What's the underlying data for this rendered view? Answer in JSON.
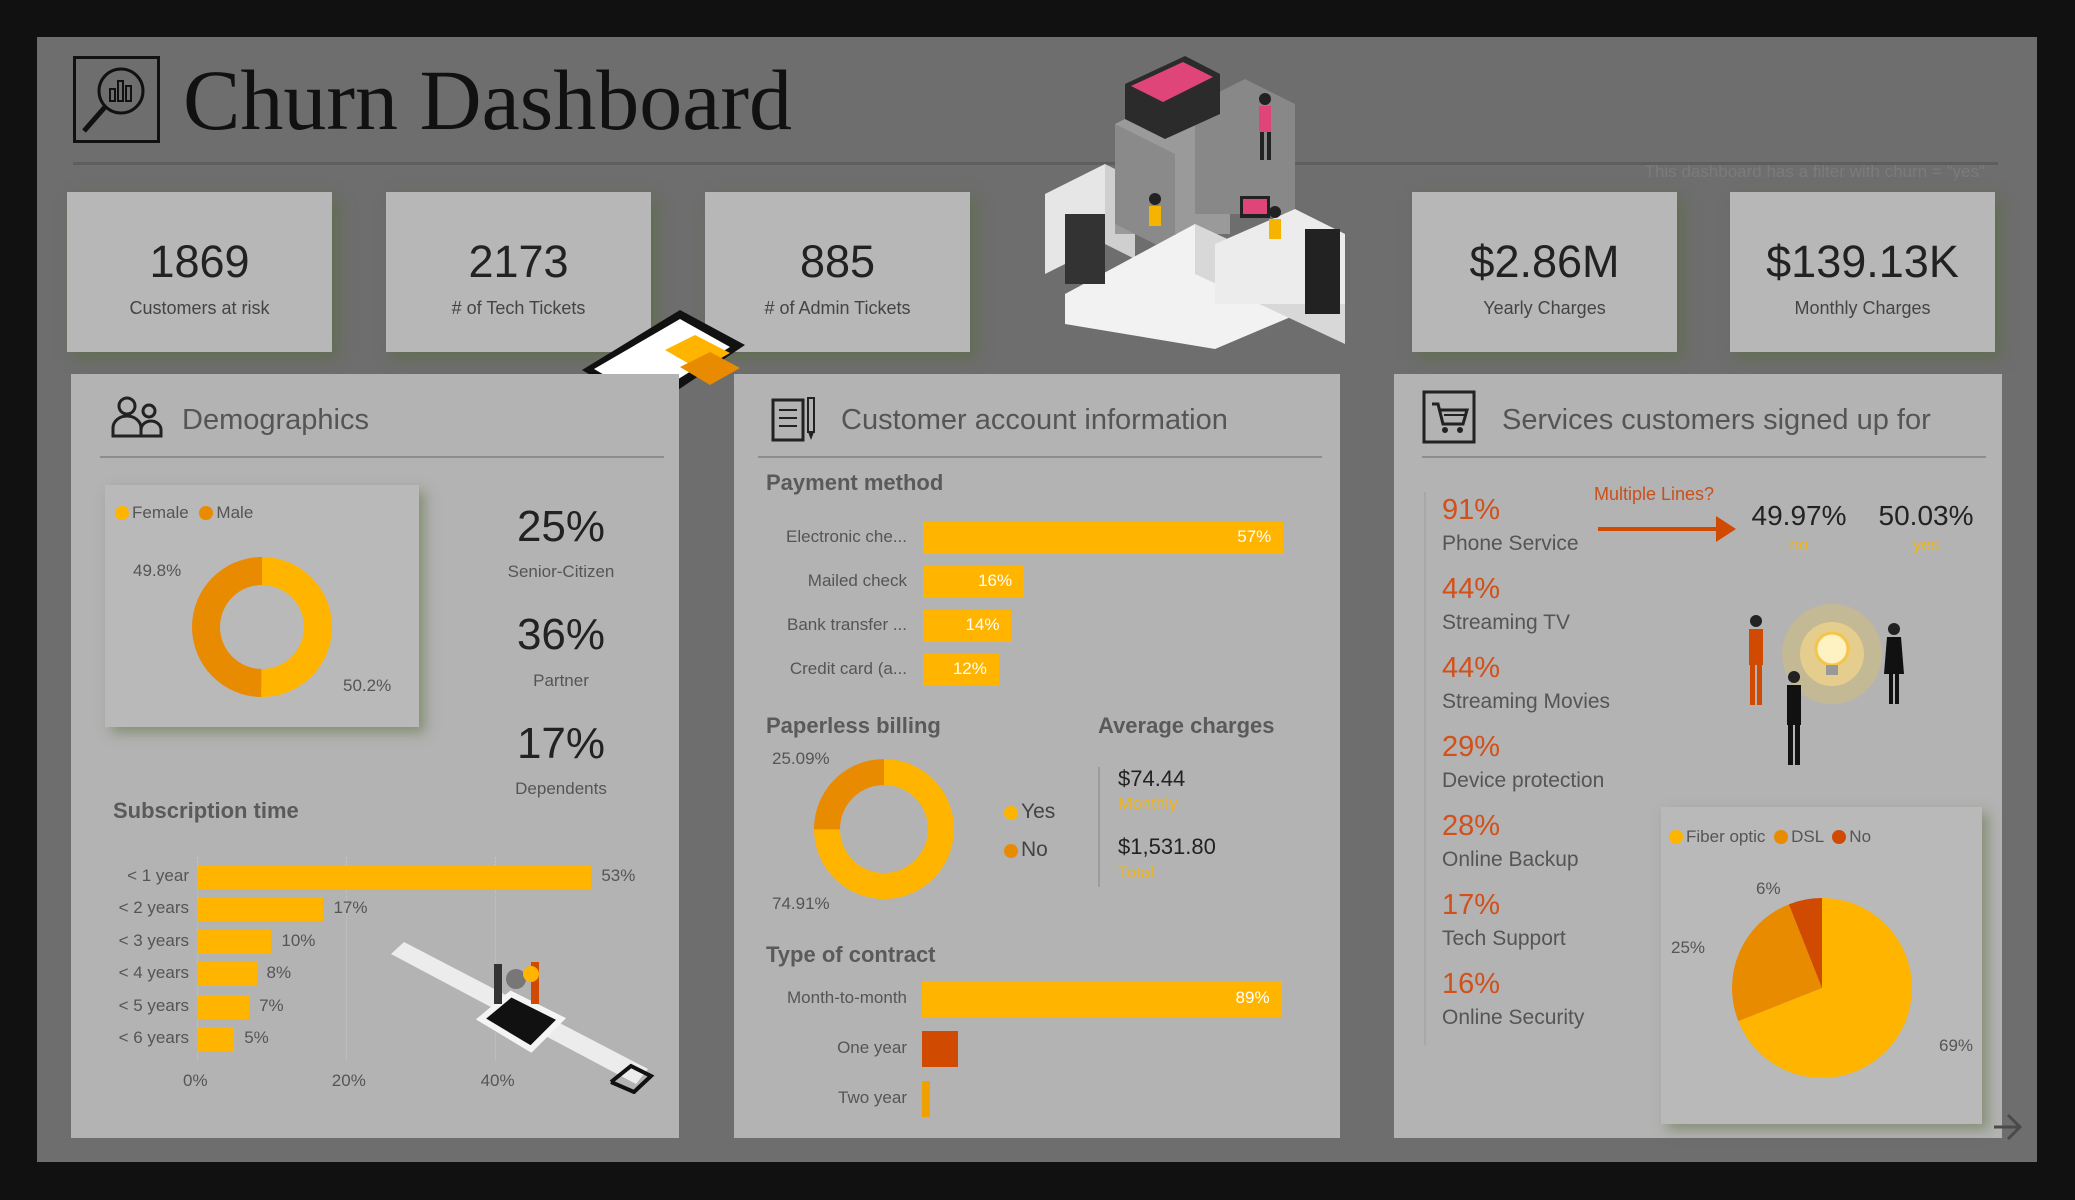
{
  "header": {
    "title": "Churn Dashboard",
    "filter_note": "This dashboard has a filter with churn = \"yes\"",
    "title_icon": "magnifier-chart-icon"
  },
  "kpis": [
    {
      "value": "1869",
      "label": "Customers at risk"
    },
    {
      "value": "2173",
      "label": "# of Tech Tickets"
    },
    {
      "value": "885",
      "label": "# of Admin Tickets"
    },
    {
      "value": "$2.86M",
      "label": "Yearly Charges"
    },
    {
      "value": "$139.13K",
      "label": "Monthly Charges"
    }
  ],
  "colors": {
    "yellow": "#ffb400",
    "orange": "#e88b00",
    "red_orange": "#d04a02",
    "panel": "#b3b3b3",
    "frame": "#6e6e6e"
  },
  "demographics": {
    "title": "Demographics",
    "icon": "users-icon",
    "stats": [
      {
        "value": "25%",
        "label": "Senior-Citizen"
      },
      {
        "value": "36%",
        "label": "Partner"
      },
      {
        "value": "17%",
        "label": "Dependents"
      }
    ],
    "subscription_title": "Subscription time"
  },
  "account": {
    "title": "Customer account information",
    "icon": "document-pen-icon",
    "payment_title": "Payment method",
    "paperless_title": "Paperless billing",
    "avg_title": "Average charges",
    "avg_monthly": "$74.44",
    "avg_monthly_label": "Monthly",
    "avg_total": "$1,531.80",
    "avg_total_label": "Total",
    "contract_title": "Type of contract"
  },
  "services": {
    "title": "Services customers signed up for",
    "icon": "shopping-cart-icon",
    "items": [
      {
        "pct": "91%",
        "label": "Phone Service"
      },
      {
        "pct": "44%",
        "label": "Streaming TV"
      },
      {
        "pct": "44%",
        "label": "Streaming Movies"
      },
      {
        "pct": "29%",
        "label": "Device protection"
      },
      {
        "pct": "28%",
        "label": "Online Backup"
      },
      {
        "pct": "17%",
        "label": "Tech Support"
      },
      {
        "pct": "16%",
        "label": "Online Security"
      }
    ],
    "multiple_lines": {
      "question": "Multiple Lines?",
      "no_value": "49.97%",
      "no_label": "no",
      "yes_value": "50.03%",
      "yes_label": "yes"
    }
  },
  "chart_data": [
    {
      "type": "pie",
      "donut": true,
      "categories": [
        "Female",
        "Male"
      ],
      "values": [
        50.2,
        49.8
      ],
      "labels": [
        "50.2%",
        "49.8%"
      ],
      "colors": [
        "#ffb400",
        "#e88b00"
      ],
      "legend": "top-left"
    },
    {
      "type": "bar",
      "orientation": "horizontal",
      "categories": [
        "< 1 year",
        "< 2 years",
        "< 3 years",
        "< 4 years",
        "< 5 years",
        "< 6 years"
      ],
      "values": [
        53,
        17,
        10,
        8,
        7,
        5
      ],
      "labels": [
        "53%",
        "17%",
        "10%",
        "8%",
        "7%",
        "5%"
      ],
      "xticks": [
        "0%",
        "20%",
        "40%"
      ],
      "xlim": [
        0,
        55
      ],
      "grid": true
    },
    {
      "type": "bar",
      "orientation": "horizontal",
      "categories": [
        "Electronic che...",
        "Mailed check",
        "Bank transfer ...",
        "Credit card (a..."
      ],
      "values": [
        57,
        16,
        14,
        12
      ],
      "labels": [
        "57%",
        "16%",
        "14%",
        "12%"
      ]
    },
    {
      "type": "pie",
      "donut": true,
      "categories": [
        "Yes",
        "No"
      ],
      "values": [
        74.91,
        25.09
      ],
      "labels": [
        "74.91%",
        "25.09%"
      ],
      "colors": [
        "#ffb400",
        "#e88b00"
      ],
      "legend": "right"
    },
    {
      "type": "bar",
      "orientation": "horizontal",
      "categories": [
        "Month-to-month",
        "One year",
        "Two year"
      ],
      "values": [
        89,
        9,
        2
      ],
      "labels": [
        "89%",
        "",
        ""
      ],
      "colors": [
        "#ffb400",
        "#d04a02",
        "#f0a000"
      ]
    },
    {
      "type": "pie",
      "categories": [
        "Fiber optic",
        "DSL",
        "No"
      ],
      "values": [
        69,
        25,
        6
      ],
      "labels": [
        "69%",
        "25%",
        "6%"
      ],
      "colors": [
        "#ffb400",
        "#e88b00",
        "#d04a02"
      ],
      "legend": "top-left"
    }
  ]
}
